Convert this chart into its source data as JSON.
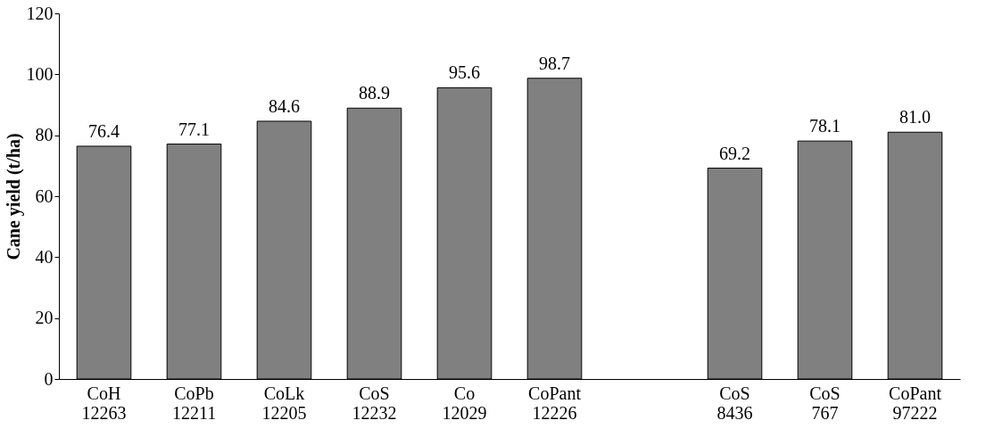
{
  "chart_data": {
    "type": "bar",
    "ylabel": "Cane yield (t/ha)",
    "categories": [
      "CoH\n12263",
      "CoPb\n12211",
      "CoLk\n12205",
      "CoS\n12232",
      "Co\n12029",
      "CoPant\n12226",
      null,
      "CoS\n8436",
      "CoS\n767",
      "CoPant\n97222"
    ],
    "values": [
      76.4,
      77.1,
      84.6,
      88.9,
      95.6,
      98.7,
      null,
      69.2,
      78.1,
      81.0
    ],
    "color": "#808080",
    "ylim": [
      0,
      120
    ],
    "yticks": [
      0,
      20,
      40,
      60,
      80,
      100,
      120
    ],
    "value_labels": [
      "76.4",
      "77.1",
      "84.6",
      "88.9",
      "95.6",
      "98.7",
      null,
      "69.2",
      "78.1",
      "81.0"
    ],
    "grid": false
  }
}
